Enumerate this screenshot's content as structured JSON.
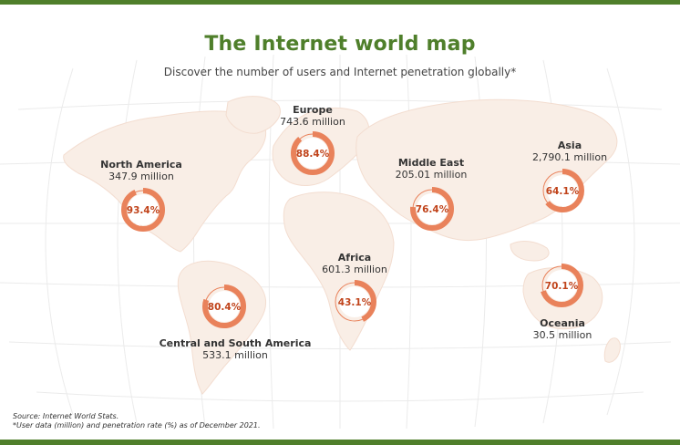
{
  "title": "The Internet world map",
  "subtitle": "Discover the number of users and Internet penetration globally*",
  "colors": {
    "brand_green": "#4f7f2b",
    "ring": "#e9825b",
    "ring_track": "#f3b69e",
    "percent_text": "#c0431a",
    "land": "#f9eee6",
    "grid": "#ececec"
  },
  "regions": [
    {
      "name": "North America",
      "users": "347.9 million",
      "penetration": 93.4,
      "label": "93.4%"
    },
    {
      "name": "Europe",
      "users": "743.6 million",
      "penetration": 88.4,
      "label": "88.4%"
    },
    {
      "name": "Middle East",
      "users": "205.01 million",
      "penetration": 76.4,
      "label": "76.4%"
    },
    {
      "name": "Asia",
      "users": "2,790.1 million",
      "penetration": 64.1,
      "label": "64.1%"
    },
    {
      "name": "Africa",
      "users": "601.3 million",
      "penetration": 43.1,
      "label": "43.1%"
    },
    {
      "name": "Central and South America",
      "users": "533.1 million",
      "penetration": 80.4,
      "label": "80.4%"
    },
    {
      "name": "Oceania",
      "users": "30.5 million",
      "penetration": 70.1,
      "label": "70.1%"
    }
  ],
  "footer": {
    "source": "Source: Internet World Stats.",
    "note": "*User data (million) and penetration rate (%) as of December 2021."
  }
}
